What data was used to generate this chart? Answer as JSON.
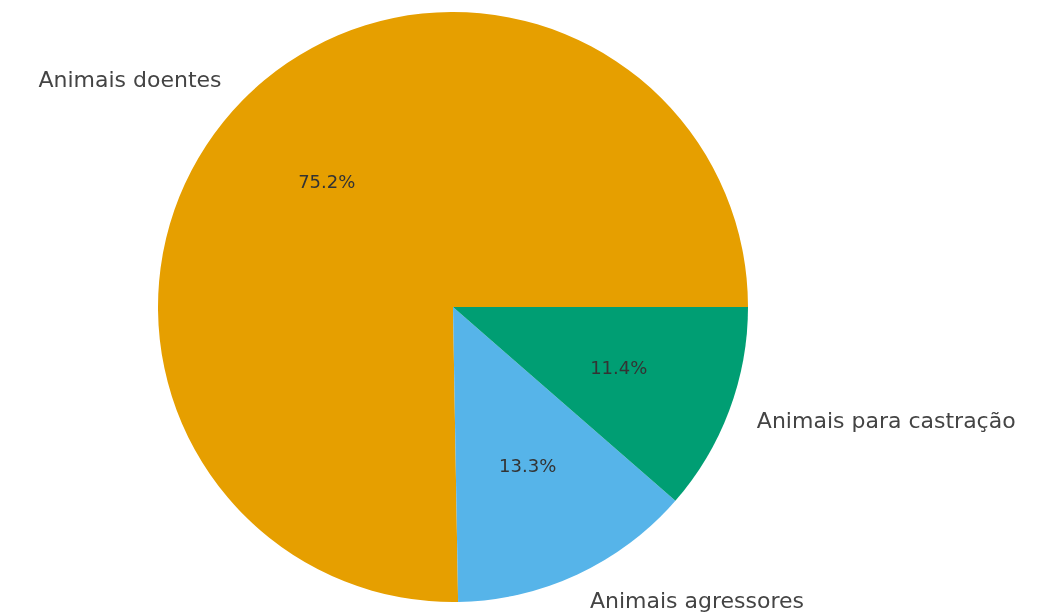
{
  "chart_data": {
    "type": "pie",
    "categories": [
      "Animais doentes",
      "Animais agressores",
      "Animais para castração"
    ],
    "values": [
      75.2,
      13.3,
      11.4
    ],
    "colors": [
      "#e69f00",
      "#56b4e9",
      "#009e73"
    ],
    "value_labels": [
      "75.2%",
      "13.3%",
      "11.4%"
    ]
  }
}
